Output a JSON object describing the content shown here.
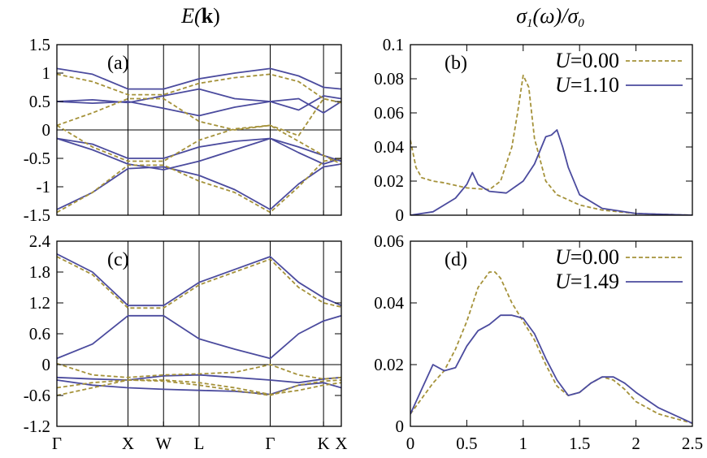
{
  "colors": {
    "u0": "#a5923a",
    "u1": "#4b4b9e",
    "axis": "#000000"
  },
  "column_titles": {
    "left": {
      "main": "E(",
      "bold": "k",
      "tail": ")"
    },
    "right": {
      "sigma": "σ",
      "sub1": "1",
      "mid": "(ω)/σ",
      "sub0": "0"
    }
  },
  "chart_data": [
    {
      "type": "line",
      "panel": "(a)",
      "title": "E(k)",
      "x_ticks": [
        "Γ",
        "X",
        "W",
        "L",
        "Γ",
        "K",
        "X"
      ],
      "x_tick_pos": [
        0,
        1,
        1.5,
        2,
        3,
        3.75,
        4
      ],
      "xlim": [
        0,
        4
      ],
      "ylim": [
        -1.5,
        1.5
      ],
      "y_ticks": [
        "1.5",
        "1",
        "0.5",
        "0",
        "-0.5",
        "-1",
        "-1.5"
      ],
      "y_tick_vals": [
        1.5,
        1,
        0.5,
        0,
        -0.5,
        -1,
        -1.5
      ],
      "zero_line": true,
      "series": [
        {
          "style": "u1",
          "x": [
            0,
            0.5,
            1,
            1.5,
            2,
            2.5,
            3,
            3.4,
            3.75,
            4
          ],
          "y": [
            1.08,
            0.98,
            0.72,
            0.72,
            0.9,
            1.0,
            1.08,
            0.95,
            0.75,
            0.72
          ]
        },
        {
          "style": "u1",
          "x": [
            0,
            0.5,
            1,
            1.5,
            2,
            2.5,
            3,
            3.4,
            3.75,
            4
          ],
          "y": [
            0.5,
            0.53,
            0.48,
            0.6,
            0.72,
            0.55,
            0.5,
            0.35,
            0.6,
            0.55
          ]
        },
        {
          "style": "u1",
          "x": [
            0,
            0.5,
            1,
            1.5,
            2,
            2.5,
            3,
            3.4,
            3.75,
            4
          ],
          "y": [
            0.5,
            0.47,
            0.5,
            0.38,
            0.25,
            0.4,
            0.5,
            0.55,
            0.3,
            0.5
          ]
        },
        {
          "style": "u1",
          "x": [
            0,
            0.5,
            1,
            1.5,
            2,
            2.5,
            3,
            3.4,
            3.75,
            4
          ],
          "y": [
            -0.15,
            -0.25,
            -0.5,
            -0.5,
            -0.3,
            -0.2,
            -0.15,
            -0.3,
            -0.45,
            -0.55
          ]
        },
        {
          "style": "u1",
          "x": [
            0,
            0.5,
            1,
            1.5,
            2,
            2.5,
            3,
            3.4,
            3.75,
            4
          ],
          "y": [
            -0.15,
            -0.35,
            -0.6,
            -0.7,
            -0.55,
            -0.35,
            -0.15,
            -0.4,
            -0.6,
            -0.5
          ]
        },
        {
          "style": "u1",
          "x": [
            0,
            0.5,
            1,
            1.5,
            2,
            2.5,
            3,
            3.4,
            3.75,
            4
          ],
          "y": [
            -1.4,
            -1.1,
            -0.68,
            -0.65,
            -0.8,
            -1.05,
            -1.4,
            -0.95,
            -0.65,
            -0.6
          ]
        },
        {
          "style": "u0",
          "x": [
            0,
            0.5,
            1,
            1.5,
            2,
            2.5,
            3,
            3.4,
            3.75,
            4
          ],
          "y": [
            0.98,
            0.85,
            0.62,
            0.62,
            0.82,
            0.92,
            0.98,
            0.85,
            0.55,
            0.48
          ]
        },
        {
          "style": "u0",
          "x": [
            0,
            0.5,
            1,
            1.5,
            2,
            2.5,
            3,
            3.4,
            3.75,
            4
          ],
          "y": [
            0.08,
            0.3,
            0.55,
            0.55,
            0.15,
            0.0,
            0.08,
            -0.2,
            -0.45,
            -0.6
          ]
        },
        {
          "style": "u0",
          "x": [
            0,
            0.5,
            1,
            1.5,
            2,
            2.5,
            3,
            3.4,
            3.75,
            4
          ],
          "y": [
            0.08,
            -0.3,
            -0.55,
            -0.55,
            -0.18,
            0.02,
            0.08,
            -0.1,
            0.55,
            0.48
          ]
        },
        {
          "style": "u0",
          "x": [
            0,
            0.5,
            1,
            1.5,
            2,
            2.5,
            3,
            3.4,
            3.75,
            4
          ],
          "y": [
            -1.45,
            -1.1,
            -0.62,
            -0.62,
            -0.9,
            -1.1,
            -1.45,
            -1.0,
            -0.55,
            -0.5
          ]
        }
      ]
    },
    {
      "type": "line",
      "panel": "(b)",
      "xlim": [
        0,
        2.5
      ],
      "ylim": [
        0,
        0.1
      ],
      "y_ticks": [
        "0.1",
        "0.08",
        "0.06",
        "0.04",
        "0.02",
        "0"
      ],
      "y_tick_vals": [
        0.1,
        0.08,
        0.06,
        0.04,
        0.02,
        0
      ],
      "legend": "top-right",
      "series": [
        {
          "name": "U=0.00",
          "legend_var": "U",
          "legend_val": "=0.00",
          "style": "u0",
          "x": [
            0,
            0.05,
            0.1,
            0.2,
            0.3,
            0.5,
            0.7,
            0.8,
            0.9,
            0.95,
            1.0,
            1.05,
            1.1,
            1.2,
            1.3,
            1.5,
            1.7,
            2.0,
            2.5
          ],
          "y": [
            0.044,
            0.028,
            0.022,
            0.02,
            0.019,
            0.016,
            0.015,
            0.02,
            0.04,
            0.06,
            0.082,
            0.075,
            0.045,
            0.02,
            0.012,
            0.006,
            0.003,
            0.001,
            0
          ]
        },
        {
          "name": "U=1.10",
          "legend_var": "U",
          "legend_val": "=1.10",
          "style": "u1",
          "x": [
            0,
            0.2,
            0.4,
            0.5,
            0.55,
            0.6,
            0.7,
            0.85,
            1.0,
            1.1,
            1.2,
            1.25,
            1.3,
            1.35,
            1.4,
            1.5,
            1.7,
            2.0,
            2.5
          ],
          "y": [
            0,
            0.002,
            0.01,
            0.018,
            0.025,
            0.018,
            0.014,
            0.013,
            0.02,
            0.03,
            0.046,
            0.047,
            0.05,
            0.04,
            0.028,
            0.012,
            0.004,
            0.001,
            0
          ]
        }
      ]
    },
    {
      "type": "line",
      "panel": "(c)",
      "x_ticks": [
        "Γ",
        "X",
        "W",
        "L",
        "Γ",
        "K",
        "X"
      ],
      "x_tick_pos": [
        0,
        1,
        1.5,
        2,
        3,
        3.75,
        4
      ],
      "xlim": [
        0,
        4
      ],
      "ylim": [
        -1.2,
        2.4
      ],
      "y_ticks": [
        "2.4",
        "1.8",
        "1.2",
        "0.6",
        "0",
        "-0.6",
        "-1.2"
      ],
      "y_tick_vals": [
        2.4,
        1.8,
        1.2,
        0.6,
        0,
        -0.6,
        -1.2
      ],
      "zero_line": true,
      "series": [
        {
          "style": "u1",
          "x": [
            0,
            0.5,
            1,
            1.5,
            2,
            2.5,
            3,
            3.4,
            3.75,
            4
          ],
          "y": [
            2.15,
            1.8,
            1.15,
            1.15,
            1.6,
            1.85,
            2.1,
            1.6,
            1.3,
            1.15
          ]
        },
        {
          "style": "u1",
          "x": [
            0,
            0.5,
            1,
            1.5,
            2,
            2.5,
            3,
            3.4,
            3.75,
            4
          ],
          "y": [
            0.12,
            0.4,
            0.95,
            0.95,
            0.5,
            0.3,
            0.12,
            0.6,
            0.85,
            0.95
          ]
        },
        {
          "style": "u1",
          "x": [
            0,
            0.5,
            1,
            1.5,
            2,
            2.5,
            3,
            3.4,
            3.75,
            4
          ],
          "y": [
            -0.25,
            -0.28,
            -0.3,
            -0.22,
            -0.2,
            -0.25,
            -0.3,
            -0.35,
            -0.28,
            -0.25
          ]
        },
        {
          "style": "u1",
          "x": [
            0,
            0.5,
            1,
            1.5,
            2,
            2.5,
            3,
            3.4,
            3.75,
            4
          ],
          "y": [
            -0.3,
            -0.4,
            -0.45,
            -0.48,
            -0.5,
            -0.52,
            -0.58,
            -0.4,
            -0.35,
            -0.45
          ]
        },
        {
          "style": "u0",
          "x": [
            0,
            0.5,
            1,
            1.5,
            2,
            2.5,
            3,
            3.4,
            3.75,
            4
          ],
          "y": [
            2.1,
            1.75,
            1.1,
            1.1,
            1.55,
            1.8,
            2.05,
            1.5,
            1.2,
            1.12
          ]
        },
        {
          "style": "u0",
          "x": [
            0,
            0.5,
            1,
            1.5,
            2,
            2.5,
            3,
            3.4,
            3.75,
            4
          ],
          "y": [
            0.02,
            -0.2,
            -0.25,
            -0.2,
            -0.18,
            -0.15,
            0.0,
            -0.2,
            -0.28,
            -0.25
          ]
        },
        {
          "style": "u0",
          "x": [
            0,
            0.5,
            1,
            1.5,
            2,
            2.5,
            3,
            3.4,
            3.75,
            4
          ],
          "y": [
            -0.45,
            -0.35,
            -0.3,
            -0.32,
            -0.4,
            -0.5,
            -0.6,
            -0.4,
            -0.32,
            -0.3
          ]
        },
        {
          "style": "u0",
          "x": [
            0,
            0.5,
            1,
            1.5,
            2,
            2.5,
            3,
            3.4,
            3.75,
            4
          ],
          "y": [
            -0.6,
            -0.45,
            -0.3,
            -0.3,
            -0.35,
            -0.45,
            -0.58,
            -0.5,
            -0.4,
            -0.35
          ]
        }
      ]
    },
    {
      "type": "line",
      "panel": "(d)",
      "xlim": [
        0,
        2.5
      ],
      "ylim": [
        0,
        0.06
      ],
      "y_ticks": [
        "0.06",
        "0.04",
        "0.02",
        "0"
      ],
      "y_tick_vals": [
        0.06,
        0.04,
        0.02,
        0
      ],
      "x_ticks": [
        "0",
        "0.5",
        "1",
        "1.5",
        "2",
        "2.5"
      ],
      "x_tick_vals": [
        0,
        0.5,
        1,
        1.5,
        2,
        2.5
      ],
      "legend": "top-right",
      "series": [
        {
          "name": "U=0.00",
          "legend_var": "U",
          "legend_val": "=0.00",
          "style": "u0",
          "x": [
            0,
            0.1,
            0.2,
            0.3,
            0.4,
            0.5,
            0.6,
            0.7,
            0.75,
            0.8,
            0.9,
            1.0,
            1.1,
            1.2,
            1.3,
            1.4,
            1.5,
            1.6,
            1.7,
            1.8,
            1.9,
            2.0,
            2.2,
            2.5
          ],
          "y": [
            0.004,
            0.009,
            0.014,
            0.018,
            0.025,
            0.034,
            0.045,
            0.05,
            0.05,
            0.048,
            0.04,
            0.034,
            0.028,
            0.02,
            0.013,
            0.01,
            0.011,
            0.014,
            0.016,
            0.015,
            0.012,
            0.008,
            0.004,
            0.001
          ]
        },
        {
          "name": "U=1.49",
          "legend_var": "U",
          "legend_val": "=1.49",
          "style": "u1",
          "x": [
            0,
            0.1,
            0.2,
            0.3,
            0.4,
            0.5,
            0.6,
            0.7,
            0.8,
            0.9,
            1.0,
            1.1,
            1.2,
            1.3,
            1.4,
            1.5,
            1.6,
            1.7,
            1.8,
            1.9,
            2.0,
            2.2,
            2.5
          ],
          "y": [
            0.004,
            0.012,
            0.02,
            0.018,
            0.019,
            0.026,
            0.031,
            0.033,
            0.036,
            0.036,
            0.035,
            0.03,
            0.022,
            0.015,
            0.01,
            0.011,
            0.014,
            0.016,
            0.016,
            0.014,
            0.011,
            0.006,
            0.001
          ]
        }
      ]
    }
  ]
}
